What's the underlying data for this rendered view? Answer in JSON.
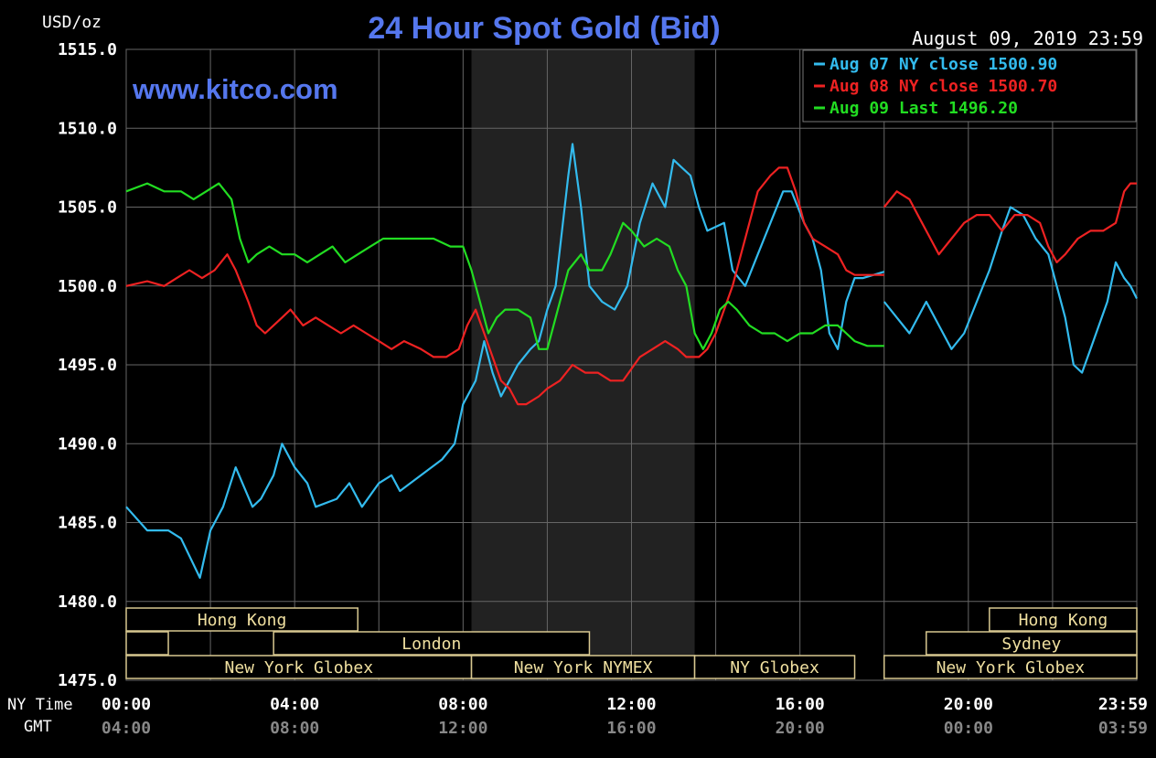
{
  "chart_data": {
    "type": "line",
    "title": "24 Hour Spot Gold (Bid)",
    "watermark": "www.kitco.com",
    "timestamp": "August 09, 2019 23:59",
    "ylabel": "USD/oz",
    "ylim": [
      1475,
      1515
    ],
    "y_ticks": [
      "1515.0",
      "1510.0",
      "1505.0",
      "1500.0",
      "1495.0",
      "1490.0",
      "1485.0",
      "1480.0",
      "1475.0"
    ],
    "xlim": [
      0,
      24
    ],
    "x_row_labels": {
      "ny": "NY Time",
      "gmt": "GMT"
    },
    "x_ticks_ny": [
      "00:00",
      "04:00",
      "08:00",
      "12:00",
      "16:00",
      "20:00",
      "23:59"
    ],
    "x_ticks_gmt": [
      "04:00",
      "08:00",
      "12:00",
      "16:00",
      "20:00",
      "00:00",
      "03:59"
    ],
    "x_tick_hours": [
      0,
      4,
      8,
      12,
      16,
      20,
      24
    ],
    "grid": true,
    "shaded_interval": [
      8.2,
      13.5
    ],
    "legend_position": "top-right",
    "legend": [
      "Aug 07 NY close 1500.90",
      "Aug 08 NY close 1500.70",
      "Aug 09 Last 1496.20"
    ],
    "sessions": [
      {
        "label": "Hong Kong",
        "start": 0,
        "end": 5.5,
        "row": 0
      },
      {
        "label": "",
        "start": 0,
        "end": 1.0,
        "row": 1
      },
      {
        "label": "London",
        "start": 3.5,
        "end": 11,
        "row": 1
      },
      {
        "label": "New York Globex",
        "start": 0,
        "end": 8.2,
        "row": 2
      },
      {
        "label": "New York NYMEX",
        "start": 8.2,
        "end": 13.5,
        "row": 2
      },
      {
        "label": "NY Globex",
        "start": 13.5,
        "end": 17.3,
        "row": 2
      },
      {
        "label": "Hong Kong",
        "start": 20.5,
        "end": 24,
        "row": 0
      },
      {
        "label": "Sydney",
        "start": 19.0,
        "end": 24,
        "row": 1
      },
      {
        "label": "New York Globex",
        "start": 18.0,
        "end": 24,
        "row": 2
      }
    ],
    "series": [
      {
        "name": "Aug 07 NY close 1500.90",
        "color": "#33bbee",
        "points": [
          [
            0,
            1486
          ],
          [
            0.5,
            1484.5
          ],
          [
            1,
            1484.5
          ],
          [
            1.3,
            1484
          ],
          [
            1.75,
            1481.5
          ],
          [
            2,
            1484.5
          ],
          [
            2.3,
            1486
          ],
          [
            2.6,
            1488.5
          ],
          [
            3,
            1486
          ],
          [
            3.2,
            1486.5
          ],
          [
            3.5,
            1488
          ],
          [
            3.7,
            1490
          ],
          [
            4,
            1488.5
          ],
          [
            4.3,
            1487.5
          ],
          [
            4.5,
            1486
          ],
          [
            5,
            1486.5
          ],
          [
            5.3,
            1487.5
          ],
          [
            5.6,
            1486
          ],
          [
            6,
            1487.5
          ],
          [
            6.3,
            1488
          ],
          [
            6.5,
            1487
          ],
          [
            7,
            1488
          ],
          [
            7.5,
            1489
          ],
          [
            7.8,
            1490
          ],
          [
            8,
            1492.5
          ],
          [
            8.3,
            1494
          ],
          [
            8.5,
            1496.5
          ],
          [
            8.7,
            1494.5
          ],
          [
            8.9,
            1493
          ],
          [
            9.1,
            1494
          ],
          [
            9.3,
            1495
          ],
          [
            9.6,
            1496
          ],
          [
            9.8,
            1496.5
          ],
          [
            10,
            1498.5
          ],
          [
            10.2,
            1500
          ],
          [
            10.5,
            1507
          ],
          [
            10.6,
            1509
          ],
          [
            10.8,
            1505
          ],
          [
            11,
            1500
          ],
          [
            11.3,
            1499
          ],
          [
            11.6,
            1498.5
          ],
          [
            11.9,
            1500
          ],
          [
            12.2,
            1504
          ],
          [
            12.5,
            1506.5
          ],
          [
            12.8,
            1505
          ],
          [
            13,
            1508
          ],
          [
            13.2,
            1507.5
          ],
          [
            13.4,
            1507
          ],
          [
            13.6,
            1505
          ],
          [
            13.8,
            1503.5
          ],
          [
            14.2,
            1504
          ],
          [
            14.4,
            1501
          ],
          [
            14.7,
            1500
          ],
          [
            15,
            1502
          ],
          [
            15.3,
            1504
          ],
          [
            15.6,
            1506
          ],
          [
            15.8,
            1506
          ],
          [
            16.1,
            1504
          ],
          [
            16.3,
            1503
          ],
          [
            16.5,
            1501
          ],
          [
            16.7,
            1497
          ],
          [
            16.9,
            1496
          ],
          [
            17.1,
            1499
          ],
          [
            17.3,
            1500.5
          ],
          [
            17.5,
            1500.5
          ],
          [
            18,
            1500.9
          ]
        ],
        "gap_from": 18,
        "points2": [
          [
            18,
            1499
          ],
          [
            18.3,
            1498
          ],
          [
            18.6,
            1497
          ],
          [
            19,
            1499
          ],
          [
            19.3,
            1497.5
          ],
          [
            19.6,
            1496
          ],
          [
            19.9,
            1497
          ],
          [
            20.2,
            1499
          ],
          [
            20.5,
            1501
          ],
          [
            20.8,
            1503.5
          ],
          [
            21,
            1505
          ],
          [
            21.3,
            1504.5
          ],
          [
            21.6,
            1503
          ],
          [
            21.9,
            1502
          ],
          [
            22.1,
            1500
          ],
          [
            22.3,
            1498
          ],
          [
            22.5,
            1495
          ],
          [
            22.7,
            1494.5
          ],
          [
            22.9,
            1496
          ],
          [
            23.1,
            1497.5
          ],
          [
            23.3,
            1499
          ],
          [
            23.5,
            1501.5
          ],
          [
            23.7,
            1500.5
          ],
          [
            23.85,
            1500
          ],
          [
            24,
            1499.2
          ]
        ]
      },
      {
        "name": "Aug 08 NY close 1500.70",
        "color": "#ee2222",
        "points": [
          [
            0,
            1500
          ],
          [
            0.5,
            1500.3
          ],
          [
            0.9,
            1500
          ],
          [
            1.2,
            1500.5
          ],
          [
            1.5,
            1501
          ],
          [
            1.8,
            1500.5
          ],
          [
            2.1,
            1501
          ],
          [
            2.4,
            1502
          ],
          [
            2.6,
            1501
          ],
          [
            2.9,
            1499
          ],
          [
            3.1,
            1497.5
          ],
          [
            3.3,
            1497
          ],
          [
            3.5,
            1497.5
          ],
          [
            3.7,
            1498
          ],
          [
            3.9,
            1498.5
          ],
          [
            4.2,
            1497.5
          ],
          [
            4.5,
            1498
          ],
          [
            4.8,
            1497.5
          ],
          [
            5.1,
            1497
          ],
          [
            5.4,
            1497.5
          ],
          [
            5.7,
            1497
          ],
          [
            6,
            1496.5
          ],
          [
            6.3,
            1496
          ],
          [
            6.6,
            1496.5
          ],
          [
            7,
            1496
          ],
          [
            7.3,
            1495.5
          ],
          [
            7.6,
            1495.5
          ],
          [
            7.9,
            1496
          ],
          [
            8.1,
            1497.5
          ],
          [
            8.3,
            1498.5
          ],
          [
            8.5,
            1497
          ],
          [
            8.7,
            1495.5
          ],
          [
            8.9,
            1494
          ],
          [
            9.1,
            1493.5
          ],
          [
            9.3,
            1492.5
          ],
          [
            9.5,
            1492.5
          ],
          [
            9.8,
            1493
          ],
          [
            10,
            1493.5
          ],
          [
            10.3,
            1494
          ],
          [
            10.6,
            1495
          ],
          [
            10.9,
            1494.5
          ],
          [
            11.2,
            1494.5
          ],
          [
            11.5,
            1494
          ],
          [
            11.8,
            1494
          ],
          [
            12.2,
            1495.5
          ],
          [
            12.5,
            1496
          ],
          [
            12.8,
            1496.5
          ],
          [
            13.1,
            1496
          ],
          [
            13.3,
            1495.5
          ],
          [
            13.6,
            1495.5
          ],
          [
            13.8,
            1496
          ],
          [
            14,
            1497
          ],
          [
            14.2,
            1498.5
          ],
          [
            14.4,
            1500
          ],
          [
            14.6,
            1502
          ],
          [
            14.8,
            1504
          ],
          [
            15,
            1506
          ],
          [
            15.3,
            1507
          ],
          [
            15.5,
            1507.5
          ],
          [
            15.7,
            1507.5
          ],
          [
            15.9,
            1506
          ],
          [
            16.1,
            1504
          ],
          [
            16.3,
            1503
          ],
          [
            16.6,
            1502.5
          ],
          [
            16.9,
            1502
          ],
          [
            17.1,
            1501
          ],
          [
            17.3,
            1500.7
          ],
          [
            18,
            1500.7
          ]
        ],
        "gap_from": 18,
        "points2": [
          [
            18,
            1505
          ],
          [
            18.3,
            1506
          ],
          [
            18.6,
            1505.5
          ],
          [
            18.9,
            1504
          ],
          [
            19.1,
            1503
          ],
          [
            19.3,
            1502
          ],
          [
            19.6,
            1503
          ],
          [
            19.9,
            1504
          ],
          [
            20.2,
            1504.5
          ],
          [
            20.5,
            1504.5
          ],
          [
            20.8,
            1503.5
          ],
          [
            21.1,
            1504.5
          ],
          [
            21.4,
            1504.5
          ],
          [
            21.7,
            1504
          ],
          [
            21.9,
            1502.5
          ],
          [
            22.1,
            1501.5
          ],
          [
            22.3,
            1502
          ],
          [
            22.6,
            1503
          ],
          [
            22.9,
            1503.5
          ],
          [
            23.2,
            1503.5
          ],
          [
            23.5,
            1504
          ],
          [
            23.7,
            1506
          ],
          [
            23.85,
            1506.5
          ],
          [
            24,
            1506.5
          ]
        ]
      },
      {
        "name": "Aug 09 Last 1496.20",
        "color": "#22dd22",
        "points": [
          [
            0,
            1506
          ],
          [
            0.5,
            1506.5
          ],
          [
            0.9,
            1506
          ],
          [
            1.3,
            1506
          ],
          [
            1.6,
            1505.5
          ],
          [
            1.9,
            1506
          ],
          [
            2.2,
            1506.5
          ],
          [
            2.5,
            1505.5
          ],
          [
            2.7,
            1503
          ],
          [
            2.9,
            1501.5
          ],
          [
            3.1,
            1502
          ],
          [
            3.4,
            1502.5
          ],
          [
            3.7,
            1502
          ],
          [
            4,
            1502
          ],
          [
            4.3,
            1501.5
          ],
          [
            4.6,
            1502
          ],
          [
            4.9,
            1502.5
          ],
          [
            5.2,
            1501.5
          ],
          [
            5.5,
            1502
          ],
          [
            5.8,
            1502.5
          ],
          [
            6.1,
            1503
          ],
          [
            6.5,
            1503
          ],
          [
            6.9,
            1503
          ],
          [
            7.3,
            1503
          ],
          [
            7.7,
            1502.5
          ],
          [
            8,
            1502.5
          ],
          [
            8.2,
            1501
          ],
          [
            8.4,
            1499
          ],
          [
            8.6,
            1497
          ],
          [
            8.8,
            1498
          ],
          [
            9,
            1498.5
          ],
          [
            9.3,
            1498.5
          ],
          [
            9.6,
            1498
          ],
          [
            9.8,
            1496
          ],
          [
            10,
            1496
          ],
          [
            10.2,
            1498
          ],
          [
            10.5,
            1501
          ],
          [
            10.8,
            1502
          ],
          [
            11,
            1501
          ],
          [
            11.3,
            1501
          ],
          [
            11.5,
            1502
          ],
          [
            11.8,
            1504
          ],
          [
            12,
            1503.5
          ],
          [
            12.3,
            1502.5
          ],
          [
            12.6,
            1503
          ],
          [
            12.9,
            1502.5
          ],
          [
            13.1,
            1501
          ],
          [
            13.3,
            1500
          ],
          [
            13.5,
            1497
          ],
          [
            13.7,
            1496
          ],
          [
            13.9,
            1497
          ],
          [
            14.1,
            1498.5
          ],
          [
            14.3,
            1499
          ],
          [
            14.5,
            1498.5
          ],
          [
            14.8,
            1497.5
          ],
          [
            15.1,
            1497
          ],
          [
            15.4,
            1497
          ],
          [
            15.7,
            1496.5
          ],
          [
            16,
            1497
          ],
          [
            16.3,
            1497
          ],
          [
            16.6,
            1497.5
          ],
          [
            16.9,
            1497.5
          ],
          [
            17.1,
            1497
          ],
          [
            17.3,
            1496.5
          ],
          [
            17.6,
            1496.2
          ],
          [
            18,
            1496.2
          ]
        ]
      }
    ]
  }
}
